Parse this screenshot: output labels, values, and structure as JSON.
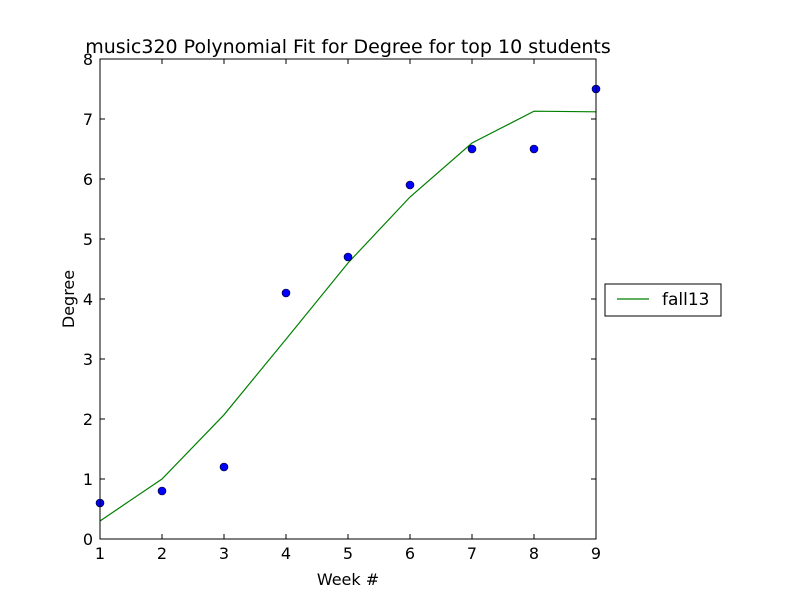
{
  "chart_data": {
    "type": "scatter",
    "title": "music320 Polynomial Fit for Degree for top 10 students",
    "xlabel": "Week #",
    "ylabel": "Degree",
    "xlim": [
      1,
      9
    ],
    "ylim": [
      0,
      8
    ],
    "xticks": [
      "1",
      "2",
      "3",
      "4",
      "5",
      "6",
      "7",
      "8",
      "9"
    ],
    "yticks": [
      "0",
      "1",
      "2",
      "3",
      "4",
      "5",
      "6",
      "7",
      "8"
    ],
    "grid": false,
    "legend_position": "outside-right",
    "points": {
      "x": [
        1,
        2,
        3,
        4,
        5,
        6,
        7,
        8,
        9
      ],
      "y": [
        0.6,
        0.8,
        1.2,
        4.1,
        4.7,
        5.9,
        6.5,
        6.5,
        7.5
      ],
      "color": "#0000ff"
    },
    "series": [
      {
        "name": "fall13",
        "type": "line",
        "color": "#008000",
        "x": [
          1,
          2,
          3,
          4,
          5,
          6,
          7,
          8,
          9
        ],
        "y": [
          0.3,
          1.0,
          2.07,
          3.33,
          4.6,
          5.7,
          6.6,
          7.13,
          7.12
        ]
      }
    ]
  }
}
